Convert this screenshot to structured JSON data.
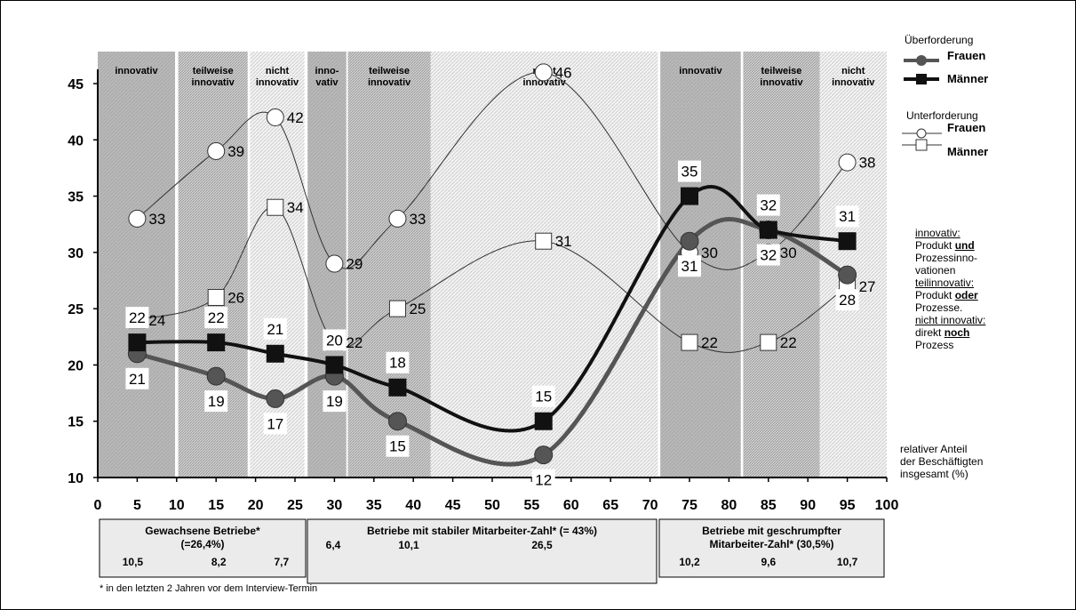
{
  "chart_data": {
    "type": "line",
    "xlim": [
      0,
      100
    ],
    "ylim": [
      10,
      45
    ],
    "x_ticks": [
      0,
      5,
      10,
      15,
      20,
      25,
      30,
      35,
      40,
      45,
      50,
      55,
      60,
      65,
      70,
      75,
      80,
      85,
      90,
      95,
      100
    ],
    "y_ticks": [
      10,
      15,
      20,
      25,
      30,
      35,
      40,
      45
    ],
    "bands": [
      {
        "label": "innovativ",
        "x0": 0,
        "x1": 9.8,
        "style": "dark"
      },
      {
        "label": "teilweise innovativ",
        "x0": 10.2,
        "x1": 19.0,
        "style": "medium"
      },
      {
        "label": "nicht innovativ",
        "x0": 19.3,
        "x1": 26.2,
        "style": "light"
      },
      {
        "label": "inno-vativ",
        "x0": 26.6,
        "x1": 31.5,
        "style": "dark"
      },
      {
        "label": "teilweise innovativ",
        "x0": 31.7,
        "x1": 42.2,
        "style": "medium"
      },
      {
        "label": "nicht innovativ",
        "x0": 42.2,
        "x1": 71.0,
        "style": "light"
      },
      {
        "label": "innovativ",
        "x0": 71.3,
        "x1": 81.5,
        "style": "dark"
      },
      {
        "label": "teilweise innovativ",
        "x0": 81.8,
        "x1": 91.5,
        "style": "medium"
      },
      {
        "label": "nicht innovativ",
        "x0": 91.5,
        "x1": 100,
        "style": "light"
      }
    ],
    "series": [
      {
        "group": "Überforderung",
        "name": "Frauen",
        "marker": "circle",
        "color": "#555555",
        "width": 5,
        "points": [
          [
            5,
            21
          ],
          [
            15,
            19
          ],
          [
            22.5,
            17
          ],
          [
            30,
            19
          ],
          [
            38,
            15
          ],
          [
            56.5,
            12
          ],
          [
            75,
            31
          ],
          [
            85,
            32
          ],
          [
            95,
            28
          ]
        ]
      },
      {
        "group": "Überforderung",
        "name": "Männer",
        "marker": "square",
        "color": "#111111",
        "width": 4,
        "points": [
          [
            5,
            22
          ],
          [
            15,
            22
          ],
          [
            22.5,
            21
          ],
          [
            30,
            20
          ],
          [
            38,
            18
          ],
          [
            56.5,
            15
          ],
          [
            75,
            35
          ],
          [
            85,
            32
          ],
          [
            95,
            31
          ]
        ]
      },
      {
        "group": "Unterforderung",
        "name": "Frauen",
        "marker": "circle-open",
        "color": "#333333",
        "width": 1,
        "points": [
          [
            5,
            33
          ],
          [
            15,
            39
          ],
          [
            22.5,
            42
          ],
          [
            30,
            29
          ],
          [
            38,
            33
          ],
          [
            56.5,
            46
          ],
          [
            75,
            30
          ],
          [
            85,
            30
          ],
          [
            95,
            38
          ]
        ]
      },
      {
        "group": "Unterforderung",
        "name": "Männer",
        "marker": "square-open",
        "color": "#333333",
        "width": 1,
        "points": [
          [
            5,
            24
          ],
          [
            15,
            26
          ],
          [
            22.5,
            34
          ],
          [
            30,
            22
          ],
          [
            38,
            25
          ],
          [
            56.5,
            31
          ],
          [
            75,
            22
          ],
          [
            85,
            22
          ],
          [
            95,
            27
          ]
        ]
      }
    ],
    "data_labels": [
      {
        "text": "33",
        "x": 5,
        "y": 33
      },
      {
        "text": "39",
        "x": 15,
        "y": 39
      },
      {
        "text": "42",
        "x": 22.5,
        "y": 42
      },
      {
        "text": "29",
        "x": 30,
        "y": 29
      },
      {
        "text": "33",
        "x": 38,
        "y": 33
      },
      {
        "text": "46",
        "x": 56.5,
        "y": 46
      },
      {
        "text": "30",
        "x": 75,
        "y": 30
      },
      {
        "text": "30",
        "x": 85,
        "y": 30
      },
      {
        "text": "38",
        "x": 95,
        "y": 38
      },
      {
        "text": "24",
        "x": 5,
        "y": 24
      },
      {
        "text": "26",
        "x": 15,
        "y": 26
      },
      {
        "text": "34",
        "x": 22.5,
        "y": 34
      },
      {
        "text": "22",
        "x": 30,
        "y": 22
      },
      {
        "text": "25",
        "x": 38,
        "y": 25
      },
      {
        "text": "31",
        "x": 56.5,
        "y": 31
      },
      {
        "text": "22",
        "x": 75,
        "y": 22
      },
      {
        "text": "22",
        "x": 85,
        "y": 22
      },
      {
        "text": "27",
        "x": 95,
        "y": 27
      },
      {
        "text": "22",
        "x": 5,
        "y": 22
      },
      {
        "text": "22",
        "x": 15,
        "y": 22
      },
      {
        "text": "21",
        "x": 22.5,
        "y": 21
      },
      {
        "text": "20",
        "x": 30,
        "y": 20
      },
      {
        "text": "18",
        "x": 38,
        "y": 18
      },
      {
        "text": "15",
        "x": 56.5,
        "y": 15
      },
      {
        "text": "35",
        "x": 75,
        "y": 35
      },
      {
        "text": "32",
        "x": 85,
        "y": 32
      },
      {
        "text": "31",
        "x": 95,
        "y": 31
      },
      {
        "text": "21",
        "x": 5,
        "y": 21
      },
      {
        "text": "19",
        "x": 15,
        "y": 19
      },
      {
        "text": "17",
        "x": 22.5,
        "y": 17
      },
      {
        "text": "19",
        "x": 30,
        "y": 19
      },
      {
        "text": "15",
        "x": 38,
        "y": 15
      },
      {
        "text": "12",
        "x": 56.5,
        "y": 12
      },
      {
        "text": "31",
        "x": 75,
        "y": 31
      },
      {
        "text": "32",
        "x": 85,
        "y": 32
      },
      {
        "text": "28",
        "x": 95,
        "y": 28
      }
    ],
    "groups": [
      {
        "title_lines": [
          "Gewachsene Betriebe*",
          "(=26,4%)"
        ],
        "values": [
          "10,5",
          "8,2",
          "7,7"
        ]
      },
      {
        "title_lines": [
          "Betriebe mit stabiler Mitarbeiter-Zahl* (= 43%)"
        ],
        "values": [
          "6,4",
          "10,1",
          "26,5"
        ]
      },
      {
        "title_lines": [
          "Betriebe mit geschrumpfter",
          "Mitarbeiter-Zahl* (30,5%)"
        ],
        "values": [
          "10,2",
          "9,6",
          "10,7"
        ]
      }
    ],
    "legend": {
      "groups": [
        {
          "title": "Überforderung",
          "items": [
            "Frauen",
            "Männer"
          ]
        },
        {
          "title": "Unterforderung",
          "items": [
            "Frauen",
            "Männer"
          ]
        }
      ],
      "placement": "right"
    },
    "axis_note": [
      "relativer Anteil",
      "der Beschäftigten",
      "insgesamt (%)"
    ],
    "footnote": "* in den letzten 2 Jahren vor dem Interview-Termin"
  },
  "definitions": {
    "innovativ_title": "innovativ:",
    "innovativ_text_1": "Produkt ",
    "innovativ_bold": "und",
    "innovativ_text_2": "Prozessinno-",
    "innovativ_text_3": "vationen",
    "teilinnovativ_title": "teilinnovativ:",
    "teilinnovativ_text_1": "Produkt ",
    "teilinnovativ_bold": "oder",
    "teilinnovativ_text_2": "Prozesse.",
    "nichtinnovativ_title": "nicht innovativ:",
    "nichtinnovativ_text_1": "direkt ",
    "nichtinnovativ_bold": "noch",
    "nichtinnovativ_text_2": "Prozess"
  }
}
